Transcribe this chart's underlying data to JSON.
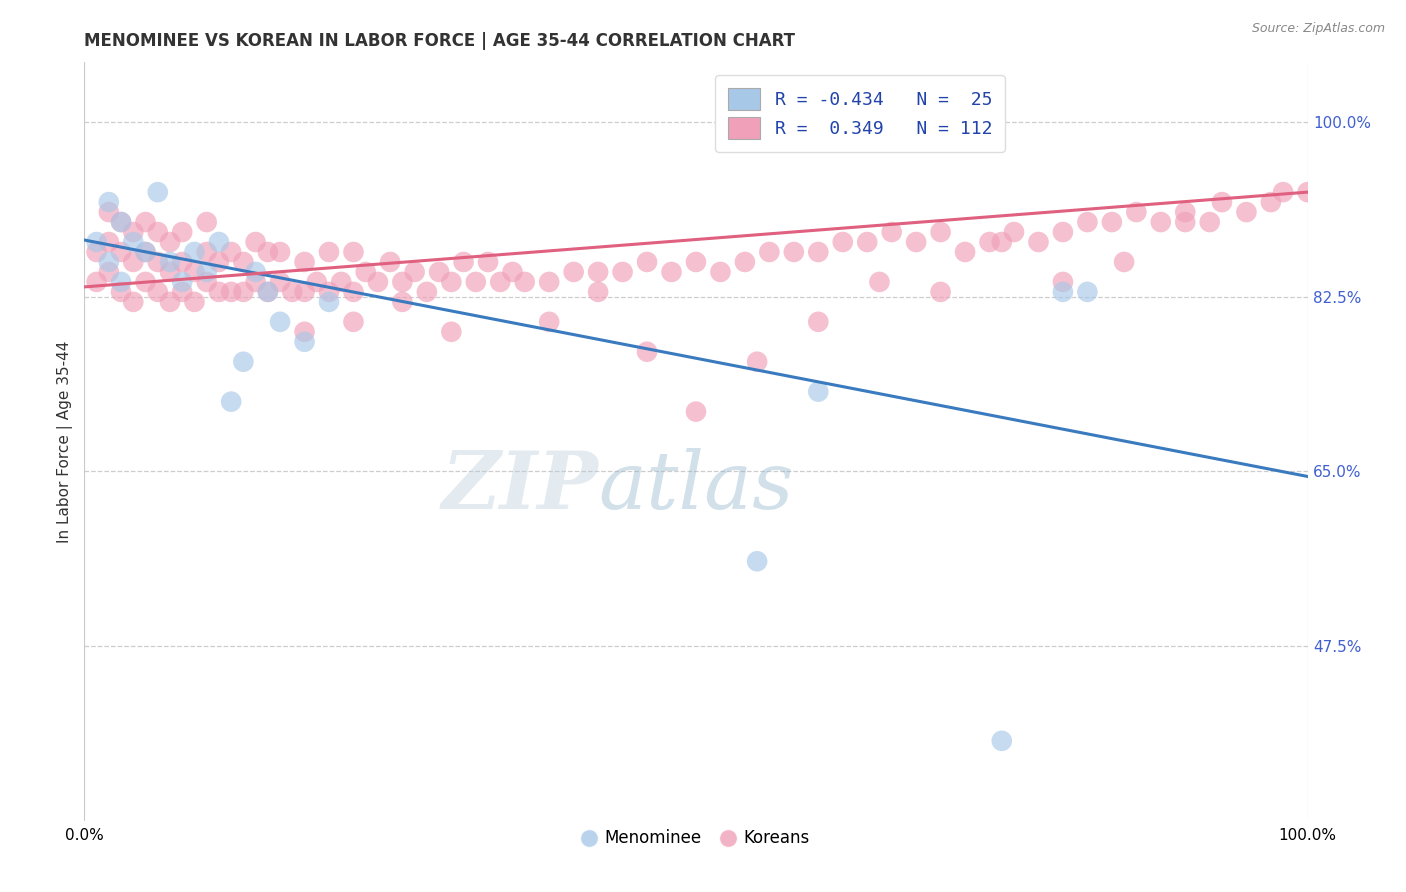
{
  "title": "MENOMINEE VS KOREAN IN LABOR FORCE | AGE 35-44 CORRELATION CHART",
  "source_text": "Source: ZipAtlas.com",
  "ylabel": "In Labor Force | Age 35-44",
  "xlim": [
    0.0,
    1.0
  ],
  "ylim": [
    0.3,
    1.06
  ],
  "yticks": [
    1.0,
    0.825,
    0.65,
    0.475
  ],
  "ytick_labels": [
    "100.0%",
    "82.5%",
    "65.0%",
    "47.5%"
  ],
  "xtick_labels": [
    "0.0%",
    "100.0%"
  ],
  "watermark_zip": "ZIP",
  "watermark_atlas": "atlas",
  "blue_color": "#a8c8e8",
  "pink_color": "#f0a0b8",
  "blue_line_color": "#3a7abf",
  "pink_line_color": "#e06080",
  "grid_color": "#c8c8c8",
  "background_color": "#ffffff",
  "title_fontsize": 12,
  "axis_label_fontsize": 11,
  "tick_fontsize": 11,
  "right_ytick_color": "#4060d0",
  "blue_line_y_start": 0.882,
  "blue_line_y_end": 0.645,
  "pink_line_y_start": 0.835,
  "pink_line_y_end": 0.93,
  "blue_scatter_x": [
    0.01,
    0.02,
    0.02,
    0.03,
    0.03,
    0.04,
    0.05,
    0.06,
    0.07,
    0.08,
    0.09,
    0.1,
    0.12,
    0.14,
    0.16,
    0.18,
    0.2,
    0.13,
    0.11,
    0.15,
    0.8,
    0.82,
    0.55,
    0.6,
    0.75
  ],
  "blue_scatter_y": [
    0.88,
    0.92,
    0.86,
    0.84,
    0.9,
    0.88,
    0.87,
    0.93,
    0.86,
    0.84,
    0.87,
    0.85,
    0.72,
    0.85,
    0.8,
    0.78,
    0.82,
    0.76,
    0.88,
    0.83,
    0.83,
    0.83,
    0.56,
    0.73,
    0.38
  ],
  "pink_scatter_x": [
    0.01,
    0.01,
    0.02,
    0.02,
    0.02,
    0.03,
    0.03,
    0.03,
    0.04,
    0.04,
    0.04,
    0.05,
    0.05,
    0.05,
    0.06,
    0.06,
    0.06,
    0.07,
    0.07,
    0.07,
    0.08,
    0.08,
    0.08,
    0.09,
    0.09,
    0.1,
    0.1,
    0.1,
    0.11,
    0.11,
    0.12,
    0.12,
    0.13,
    0.13,
    0.14,
    0.14,
    0.15,
    0.15,
    0.16,
    0.16,
    0.17,
    0.18,
    0.18,
    0.19,
    0.2,
    0.2,
    0.21,
    0.22,
    0.22,
    0.23,
    0.24,
    0.25,
    0.26,
    0.27,
    0.28,
    0.29,
    0.3,
    0.31,
    0.32,
    0.33,
    0.34,
    0.35,
    0.36,
    0.38,
    0.4,
    0.42,
    0.44,
    0.46,
    0.48,
    0.5,
    0.52,
    0.54,
    0.56,
    0.58,
    0.6,
    0.62,
    0.64,
    0.66,
    0.68,
    0.7,
    0.72,
    0.74,
    0.76,
    0.78,
    0.8,
    0.82,
    0.84,
    0.86,
    0.88,
    0.9,
    0.92,
    0.93,
    0.95,
    0.97,
    0.98,
    1.0,
    0.55,
    0.6,
    0.65,
    0.7,
    0.75,
    0.8,
    0.85,
    0.9,
    0.38,
    0.42,
    0.46,
    0.5,
    0.18,
    0.22,
    0.26,
    0.3
  ],
  "pink_scatter_y": [
    0.87,
    0.84,
    0.85,
    0.88,
    0.91,
    0.83,
    0.87,
    0.9,
    0.82,
    0.86,
    0.89,
    0.84,
    0.87,
    0.9,
    0.83,
    0.86,
    0.89,
    0.82,
    0.85,
    0.88,
    0.83,
    0.86,
    0.89,
    0.82,
    0.85,
    0.84,
    0.87,
    0.9,
    0.83,
    0.86,
    0.83,
    0.87,
    0.83,
    0.86,
    0.84,
    0.88,
    0.83,
    0.87,
    0.84,
    0.87,
    0.83,
    0.83,
    0.86,
    0.84,
    0.83,
    0.87,
    0.84,
    0.83,
    0.87,
    0.85,
    0.84,
    0.86,
    0.84,
    0.85,
    0.83,
    0.85,
    0.84,
    0.86,
    0.84,
    0.86,
    0.84,
    0.85,
    0.84,
    0.84,
    0.85,
    0.85,
    0.85,
    0.86,
    0.85,
    0.86,
    0.85,
    0.86,
    0.87,
    0.87,
    0.87,
    0.88,
    0.88,
    0.89,
    0.88,
    0.89,
    0.87,
    0.88,
    0.89,
    0.88,
    0.89,
    0.9,
    0.9,
    0.91,
    0.9,
    0.91,
    0.9,
    0.92,
    0.91,
    0.92,
    0.93,
    0.93,
    0.76,
    0.8,
    0.84,
    0.83,
    0.88,
    0.84,
    0.86,
    0.9,
    0.8,
    0.83,
    0.77,
    0.71,
    0.79,
    0.8,
    0.82,
    0.79
  ]
}
